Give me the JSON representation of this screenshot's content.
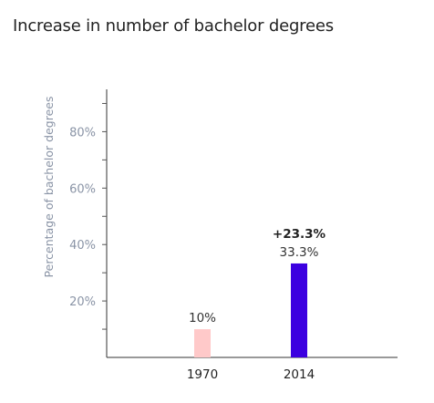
{
  "chart_data": {
    "type": "bar",
    "title": "Increase in number of bachelor degrees",
    "ylabel": "Percentage of bachelor degrees",
    "xlabel": "",
    "categories": [
      "1970",
      "2014"
    ],
    "values": [
      10,
      33.3
    ],
    "data_labels": [
      "10%",
      "33.3%"
    ],
    "annotations": [
      {
        "category": "2014",
        "text": "+23.3%"
      }
    ],
    "ylim": [
      0,
      95
    ],
    "yticks": [
      20,
      40,
      60,
      80
    ],
    "ytick_labels": [
      "20%",
      "40%",
      "60%",
      "80%"
    ],
    "colors": [
      "#ffc9c9",
      "#3c00e0"
    ],
    "grid": false,
    "legend": "none"
  }
}
